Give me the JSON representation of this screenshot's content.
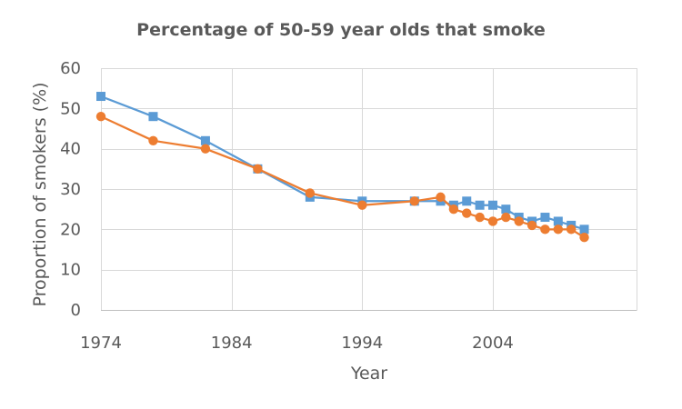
{
  "chart_data": {
    "type": "line",
    "title": "Percentage of 50-59 year olds that smoke",
    "xlabel": "Year",
    "ylabel": "Proportion of smokers (%)",
    "xlim": [
      1974,
      2015
    ],
    "ylim": [
      0,
      60
    ],
    "x_ticks": [
      "1974",
      "1984",
      "1994",
      "2004"
    ],
    "y_ticks": [
      "0",
      "10",
      "20",
      "30",
      "40",
      "50",
      "60"
    ],
    "grid": true,
    "legend": "none",
    "series": [
      {
        "color": "#5b9bd5",
        "marker": "square",
        "points": [
          {
            "x": 1974,
            "y": 53
          },
          {
            "x": 1978,
            "y": 48
          },
          {
            "x": 1982,
            "y": 42
          },
          {
            "x": 1986,
            "y": 35
          },
          {
            "x": 1990,
            "y": 28
          },
          {
            "x": 1994,
            "y": 27
          },
          {
            "x": 1998,
            "y": 27
          },
          {
            "x": 2000,
            "y": 27
          },
          {
            "x": 2001,
            "y": 26
          },
          {
            "x": 2002,
            "y": 27
          },
          {
            "x": 2003,
            "y": 26
          },
          {
            "x": 2004,
            "y": 26
          },
          {
            "x": 2005,
            "y": 25
          },
          {
            "x": 2006,
            "y": 23
          },
          {
            "x": 2007,
            "y": 22
          },
          {
            "x": 2008,
            "y": 23
          },
          {
            "x": 2009,
            "y": 22
          },
          {
            "x": 2010,
            "y": 21
          },
          {
            "x": 2011,
            "y": 20
          }
        ]
      },
      {
        "color": "#ed7d31",
        "marker": "circle",
        "points": [
          {
            "x": 1974,
            "y": 48
          },
          {
            "x": 1978,
            "y": 42
          },
          {
            "x": 1982,
            "y": 40
          },
          {
            "x": 1986,
            "y": 35
          },
          {
            "x": 1990,
            "y": 29
          },
          {
            "x": 1994,
            "y": 26
          },
          {
            "x": 1998,
            "y": 27
          },
          {
            "x": 2000,
            "y": 28
          },
          {
            "x": 2001,
            "y": 25
          },
          {
            "x": 2002,
            "y": 24
          },
          {
            "x": 2003,
            "y": 23
          },
          {
            "x": 2004,
            "y": 22
          },
          {
            "x": 2005,
            "y": 23
          },
          {
            "x": 2006,
            "y": 22
          },
          {
            "x": 2007,
            "y": 21
          },
          {
            "x": 2008,
            "y": 20
          },
          {
            "x": 2009,
            "y": 20
          },
          {
            "x": 2010,
            "y": 20
          },
          {
            "x": 2011,
            "y": 18
          }
        ]
      }
    ]
  }
}
